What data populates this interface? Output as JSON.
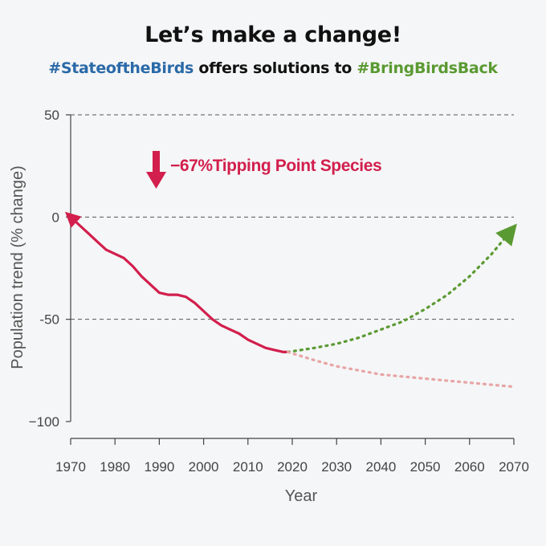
{
  "header": {
    "title": "Let’s make a change!",
    "subtitle_tag_1": "#StateoftheBirds",
    "subtitle_middle": " offers solutions to ",
    "subtitle_tag_2": "#BringBirdsBack"
  },
  "chart_data": {
    "type": "line",
    "title": "Let’s make a change!",
    "xlabel": "Year",
    "ylabel": "Population trend (% change)",
    "xlim": [
      1970,
      2070
    ],
    "ylim": [
      -100,
      50
    ],
    "xticks": [
      "1970",
      "1980",
      "1990",
      "2000",
      "2010",
      "2020",
      "2030",
      "2040",
      "2050",
      "2060",
      "2070"
    ],
    "yticks": [
      "50",
      "0",
      "-50",
      "−100"
    ],
    "grid": "horizontal dashed at 50, 0, -50",
    "annotation": {
      "value_label": "−67%",
      "text": "Tipping Point Species",
      "color": "#d21f4d"
    },
    "series": [
      {
        "style": "solid",
        "color": "#d21f4d",
        "x": [
          1970,
          1972,
          1974,
          1976,
          1978,
          1980,
          1982,
          1984,
          1986,
          1988,
          1990,
          1992,
          1994,
          1996,
          1998,
          2000,
          2002,
          2004,
          2006,
          2008,
          2010,
          2012,
          2014,
          2016,
          2018,
          2019
        ],
        "y": [
          0,
          -4,
          -8,
          -12,
          -16,
          -18,
          -20,
          -24,
          -29,
          -33,
          -37,
          -38,
          -38,
          -39,
          -42,
          -46,
          -50,
          -53,
          -55,
          -57,
          -60,
          -62,
          -64,
          -65,
          -66,
          -66
        ]
      },
      {
        "style": "dotted",
        "color": "#5a9a32",
        "x": [
          2019,
          2025,
          2030,
          2035,
          2040,
          2045,
          2050,
          2055,
          2060,
          2065,
          2070
        ],
        "y": [
          -66,
          -64,
          -62,
          -59,
          -55,
          -51,
          -45,
          -38,
          -29,
          -18,
          -5
        ]
      },
      {
        "style": "dotted",
        "color": "#e8a5a5",
        "x": [
          2019,
          2025,
          2030,
          2035,
          2040,
          2045,
          2050,
          2055,
          2060,
          2065,
          2070
        ],
        "y": [
          -66,
          -70,
          -73,
          -75,
          -77,
          -78,
          -79,
          -80,
          -81,
          -82,
          -83
        ]
      }
    ]
  }
}
